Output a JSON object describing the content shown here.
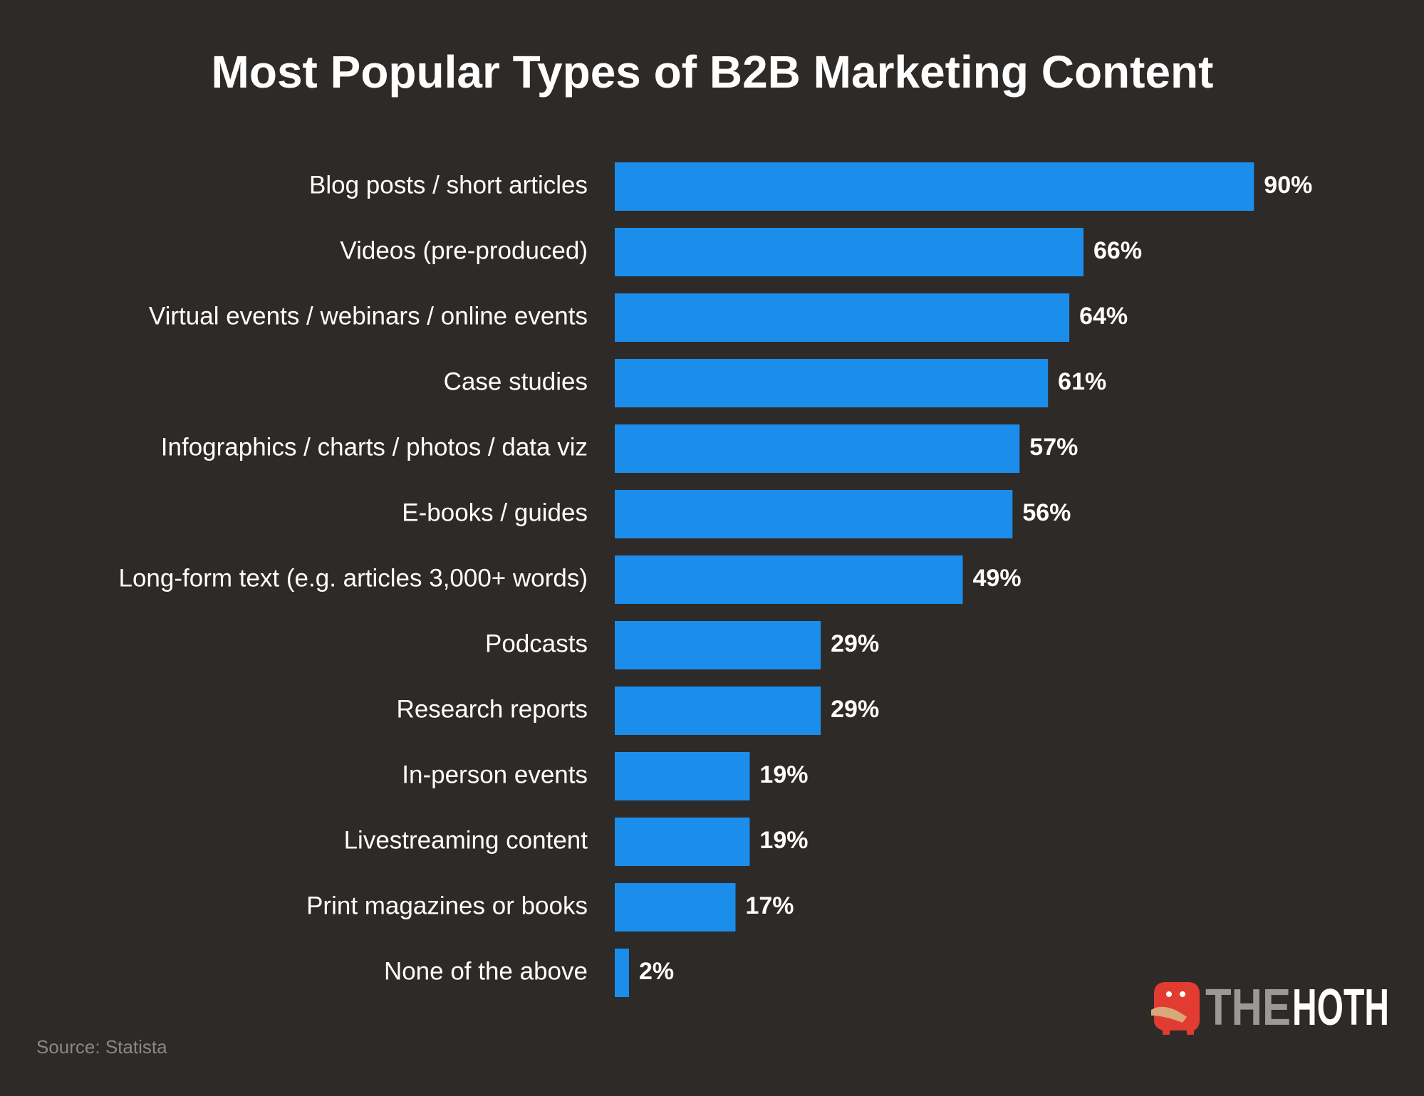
{
  "chart_data": {
    "type": "bar",
    "orientation": "horizontal",
    "title": "Most Popular Types of B2B Marketing Content",
    "categories": [
      "Blog posts / short articles",
      "Videos (pre-produced)",
      "Virtual events / webinars / online events",
      "Case studies",
      "Infographics / charts / photos / data viz",
      "E-books / guides",
      "Long-form text (e.g. articles 3,000+ words)",
      "Podcasts",
      "Research reports",
      "In-person events",
      "Livestreaming content",
      "Print magazines or books",
      "None of the above"
    ],
    "values": [
      90,
      66,
      64,
      61,
      57,
      56,
      49,
      29,
      29,
      19,
      19,
      17,
      2
    ],
    "value_labels": [
      "90%",
      "66%",
      "64%",
      "61%",
      "57%",
      "56%",
      "49%",
      "29%",
      "29%",
      "19%",
      "19%",
      "17%",
      "2%"
    ],
    "color": "#1b8eec",
    "xlim": [
      0,
      100
    ],
    "source": "Source: Statista"
  },
  "logo": [
    "THE",
    "HOTH"
  ]
}
